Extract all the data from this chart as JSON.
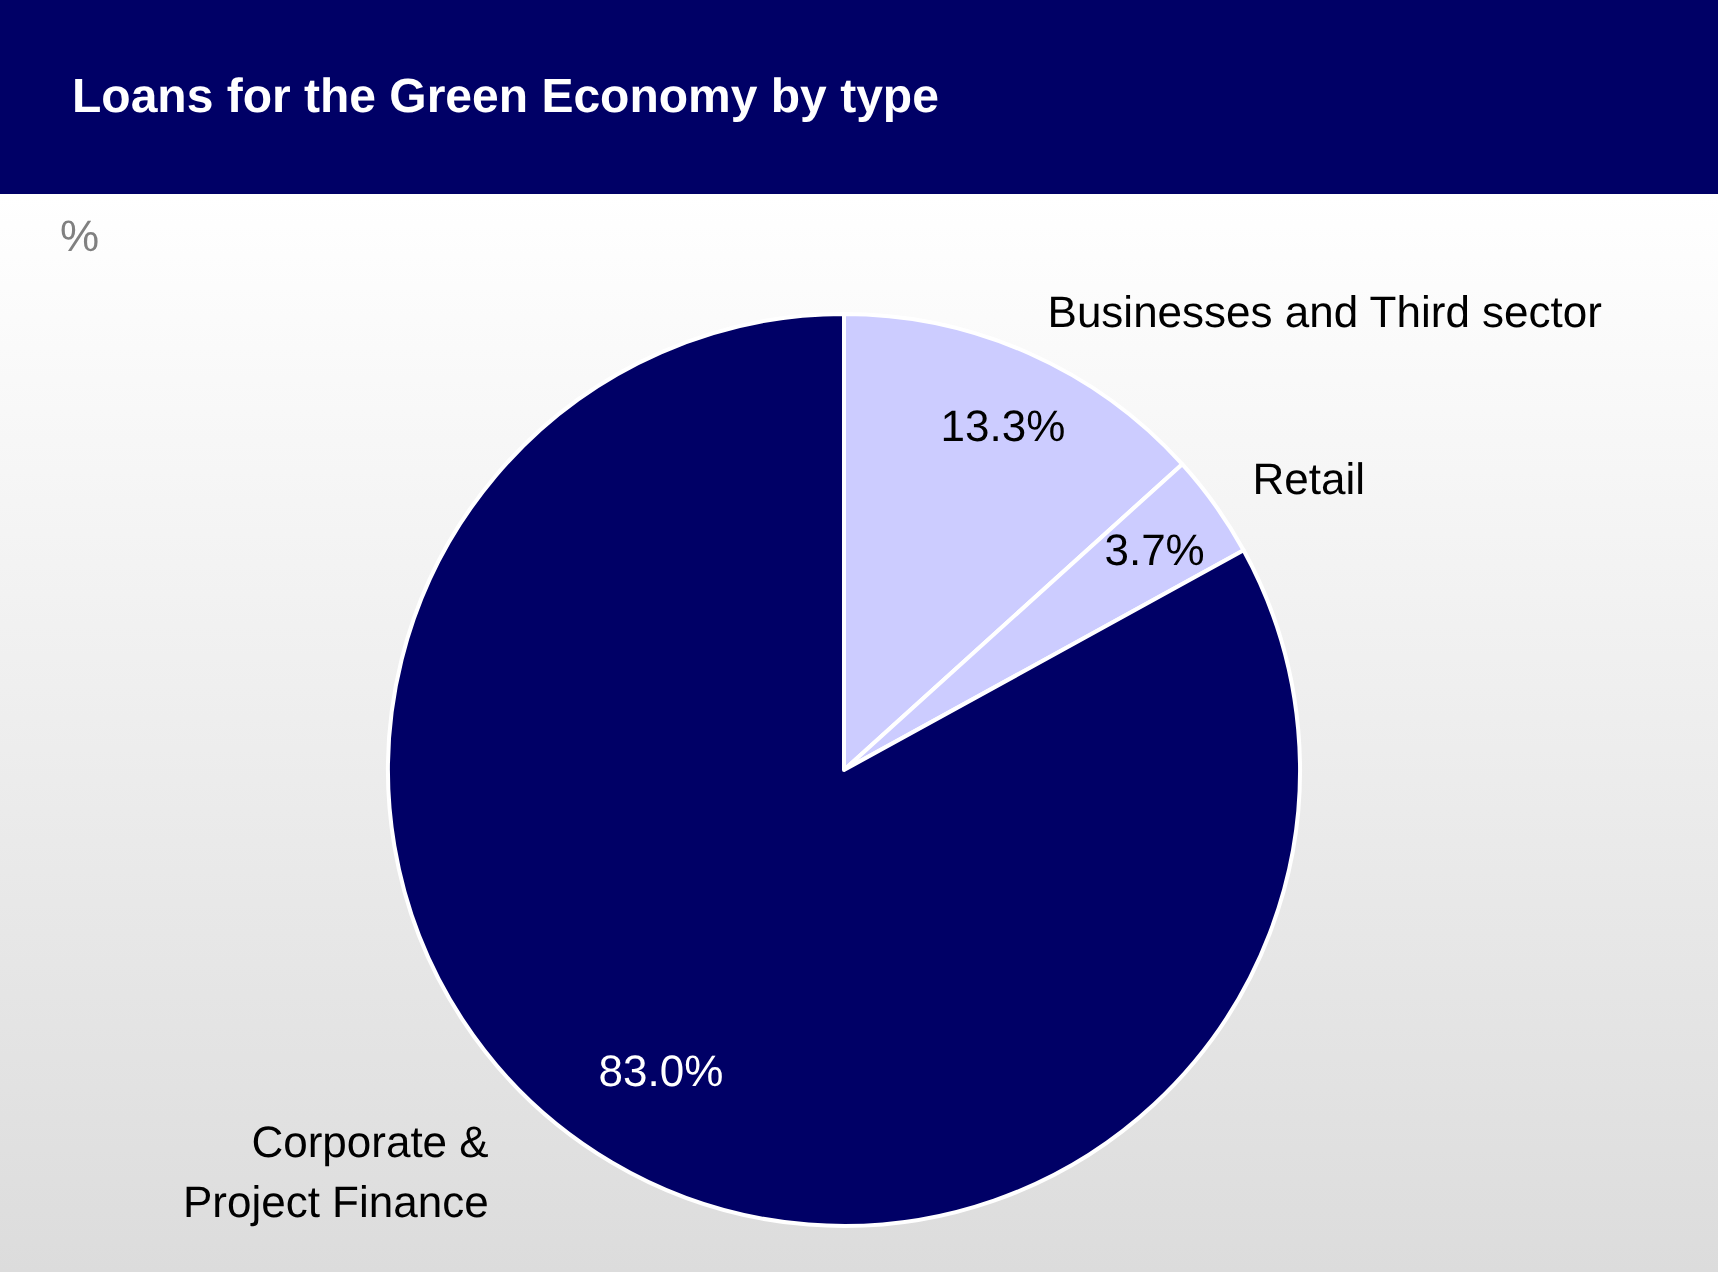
{
  "chart_data": {
    "type": "pie",
    "title": "Loans for the Green Economy by type",
    "annotations": [
      "%"
    ],
    "categories": [
      "Businesses and Third sector",
      "Retail",
      "Corporate &\nProject Finance"
    ],
    "values": [
      13.3,
      3.7,
      83.0
    ],
    "colors": [
      "#ccccff",
      "#ccccff",
      "#000066"
    ],
    "value_labels": [
      "13.3%",
      "3.7%",
      "83.0%"
    ],
    "legend": false
  }
}
